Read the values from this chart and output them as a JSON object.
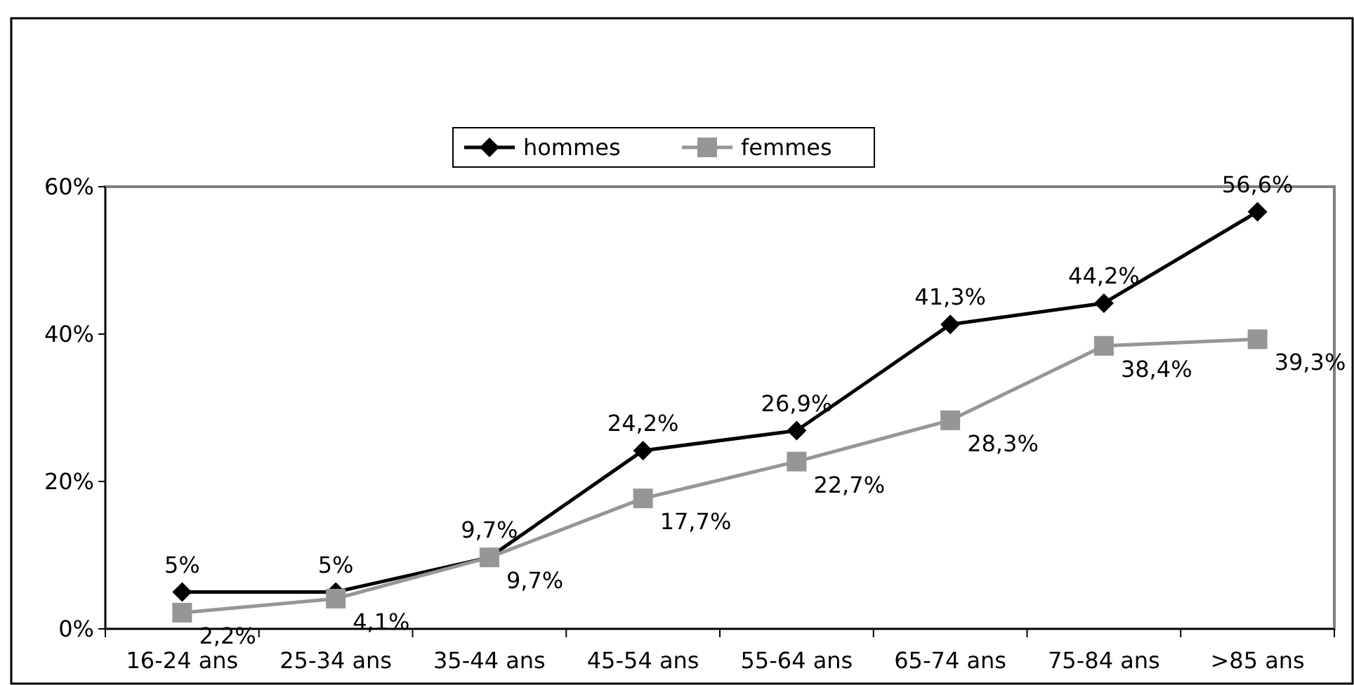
{
  "chart_data": {
    "type": "line",
    "categories": [
      "16-24 ans",
      "25-34 ans",
      "35-44 ans",
      "45-54 ans",
      "55-64 ans",
      "65-74 ans",
      "75-84 ans",
      ">85 ans"
    ],
    "series": [
      {
        "name": "hommes",
        "color": "#000000",
        "marker": "diamond",
        "values": [
          5,
          5,
          9.7,
          24.2,
          26.9,
          41.3,
          44.2,
          56.6
        ],
        "value_labels": [
          "5%",
          "5%",
          "9,7%",
          "24,2%",
          "26,9%",
          "41,3%",
          "44,2%",
          "56,6%"
        ]
      },
      {
        "name": "femmes",
        "color": "#969696",
        "marker": "square",
        "values": [
          2.2,
          4.1,
          9.7,
          17.7,
          22.7,
          28.3,
          38.4,
          39.3
        ],
        "value_labels": [
          "2,2%",
          "4,1%",
          "9,7%",
          "17,7%",
          "22,7%",
          "28,3%",
          "38,4%",
          "39,3%"
        ]
      }
    ],
    "ylim": [
      0,
      60
    ],
    "yticks": [
      {
        "value": 0,
        "label": "0%"
      },
      {
        "value": 20,
        "label": "20%"
      },
      {
        "value": 40,
        "label": "40%"
      },
      {
        "value": 60,
        "label": "60%"
      }
    ],
    "legend": "top",
    "grid": false
  }
}
